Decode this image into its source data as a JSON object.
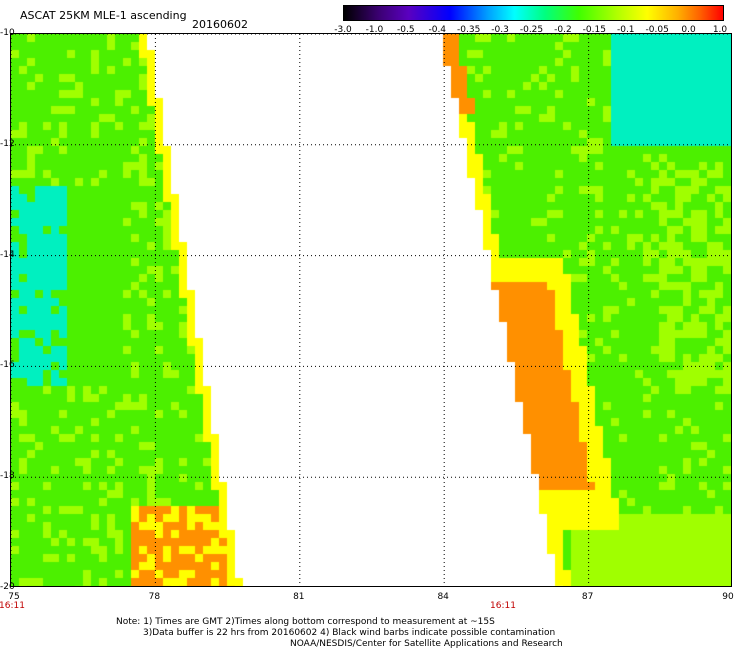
{
  "header": {
    "title": "ASCAT 25KM MLE-1 ascending",
    "date": "20160602"
  },
  "colorbar": {
    "ticks": [
      "-3.0",
      "-1.0",
      "-0.5",
      "-0.4",
      "-0.35",
      "-0.3",
      "-0.25",
      "-0.2",
      "-0.15",
      "-0.1",
      "-0.05",
      "0.0",
      "1.0"
    ],
    "colors": [
      "#000000",
      "#3a0070",
      "#0000ff",
      "#00a0ff",
      "#00ffff",
      "#00ff80",
      "#40ff00",
      "#b0ff00",
      "#ffff00",
      "#ff6000",
      "#ff0000"
    ]
  },
  "map": {
    "lat_ticks": [
      "-10",
      "-12",
      "-14",
      "-16",
      "-18",
      "-20"
    ],
    "lon_ticks": [
      "75",
      "78",
      "81",
      "84",
      "87",
      "90"
    ],
    "lat_range": [
      -10,
      -20
    ],
    "lon_range": [
      75,
      90
    ],
    "swath_times": [
      "16:11",
      "16:11"
    ],
    "colors": {
      "green": "#4cf000",
      "light_green": "#a0ff00",
      "cyan": "#00f0c0",
      "yellow": "#ffff00",
      "orange": "#ff9000",
      "no_data": "#ffffff"
    }
  },
  "notes": {
    "line1": "Note: 1) Times are GMT 2)Times along bottom correspond to measurement at ~15S",
    "line2": "3)Data buffer is 22 hrs from 20160602 4) Black wind barbs indicate possible contamination",
    "line3": "NOAA/NESDIS/Center for Satellite Applications and Research"
  }
}
